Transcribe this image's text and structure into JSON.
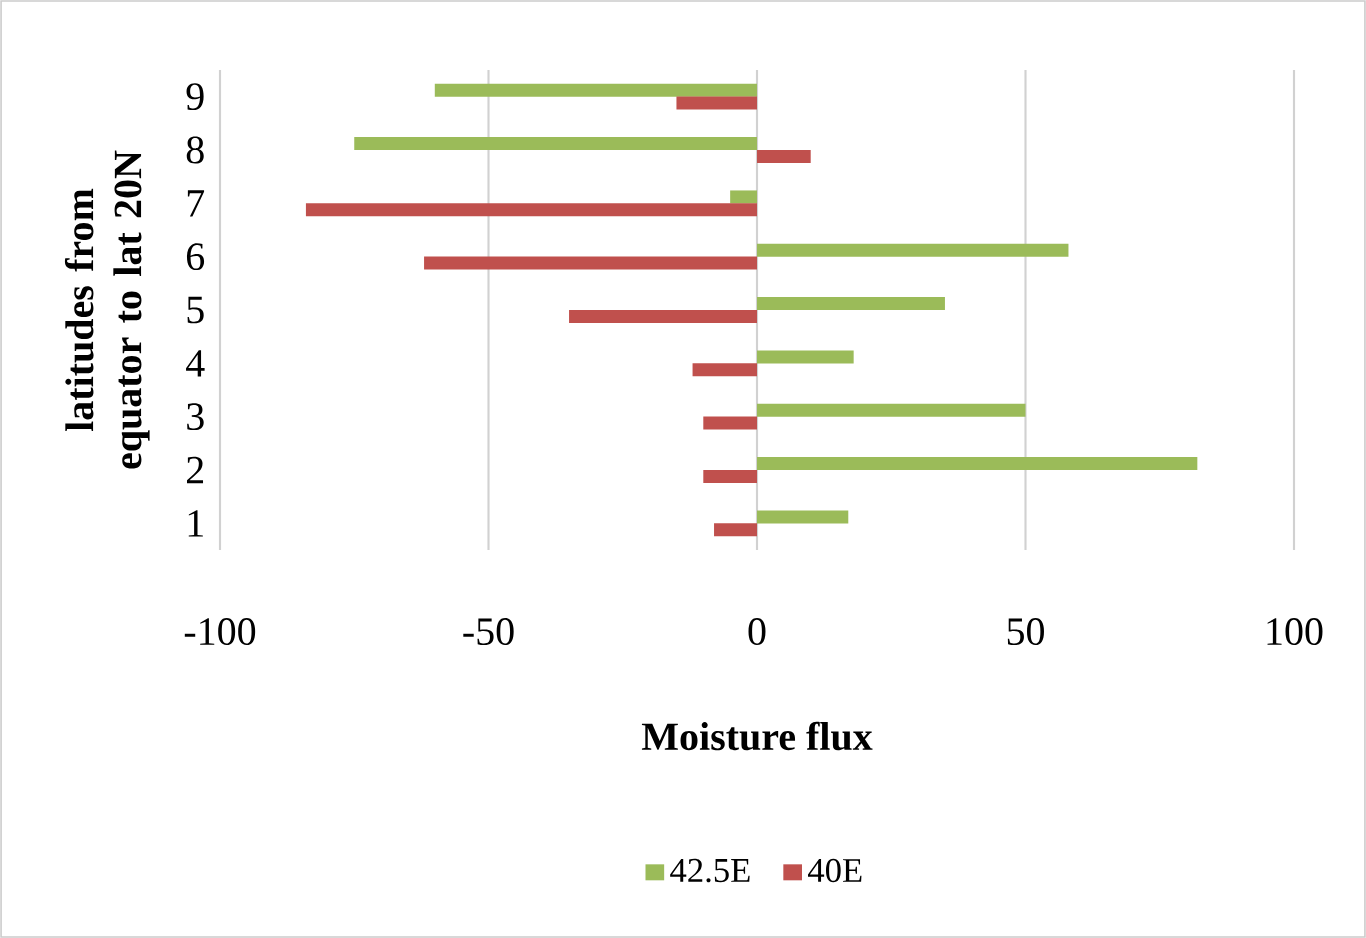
{
  "chart_data": {
    "type": "bar",
    "orientation": "horizontal",
    "xlabel": "Moisture flux",
    "ylabel": "latitudes from equator to lat 20N",
    "categories": [
      "9",
      "8",
      "7",
      "6",
      "5",
      "4",
      "3",
      "2",
      "1"
    ],
    "series": [
      {
        "name": "42.5E",
        "color": "#9bbb59",
        "values": [
          -60,
          -75,
          -5,
          58,
          35,
          18,
          50,
          82,
          17
        ]
      },
      {
        "name": "40E",
        "color": "#c0504d",
        "values": [
          -15,
          10,
          -84,
          -62,
          -35,
          -12,
          -10,
          -10,
          -8
        ]
      }
    ],
    "xlim": [
      -100,
      100
    ],
    "xticks": [
      -100,
      -50,
      0,
      50,
      100
    ],
    "grid": "x",
    "legend": "bottom"
  }
}
